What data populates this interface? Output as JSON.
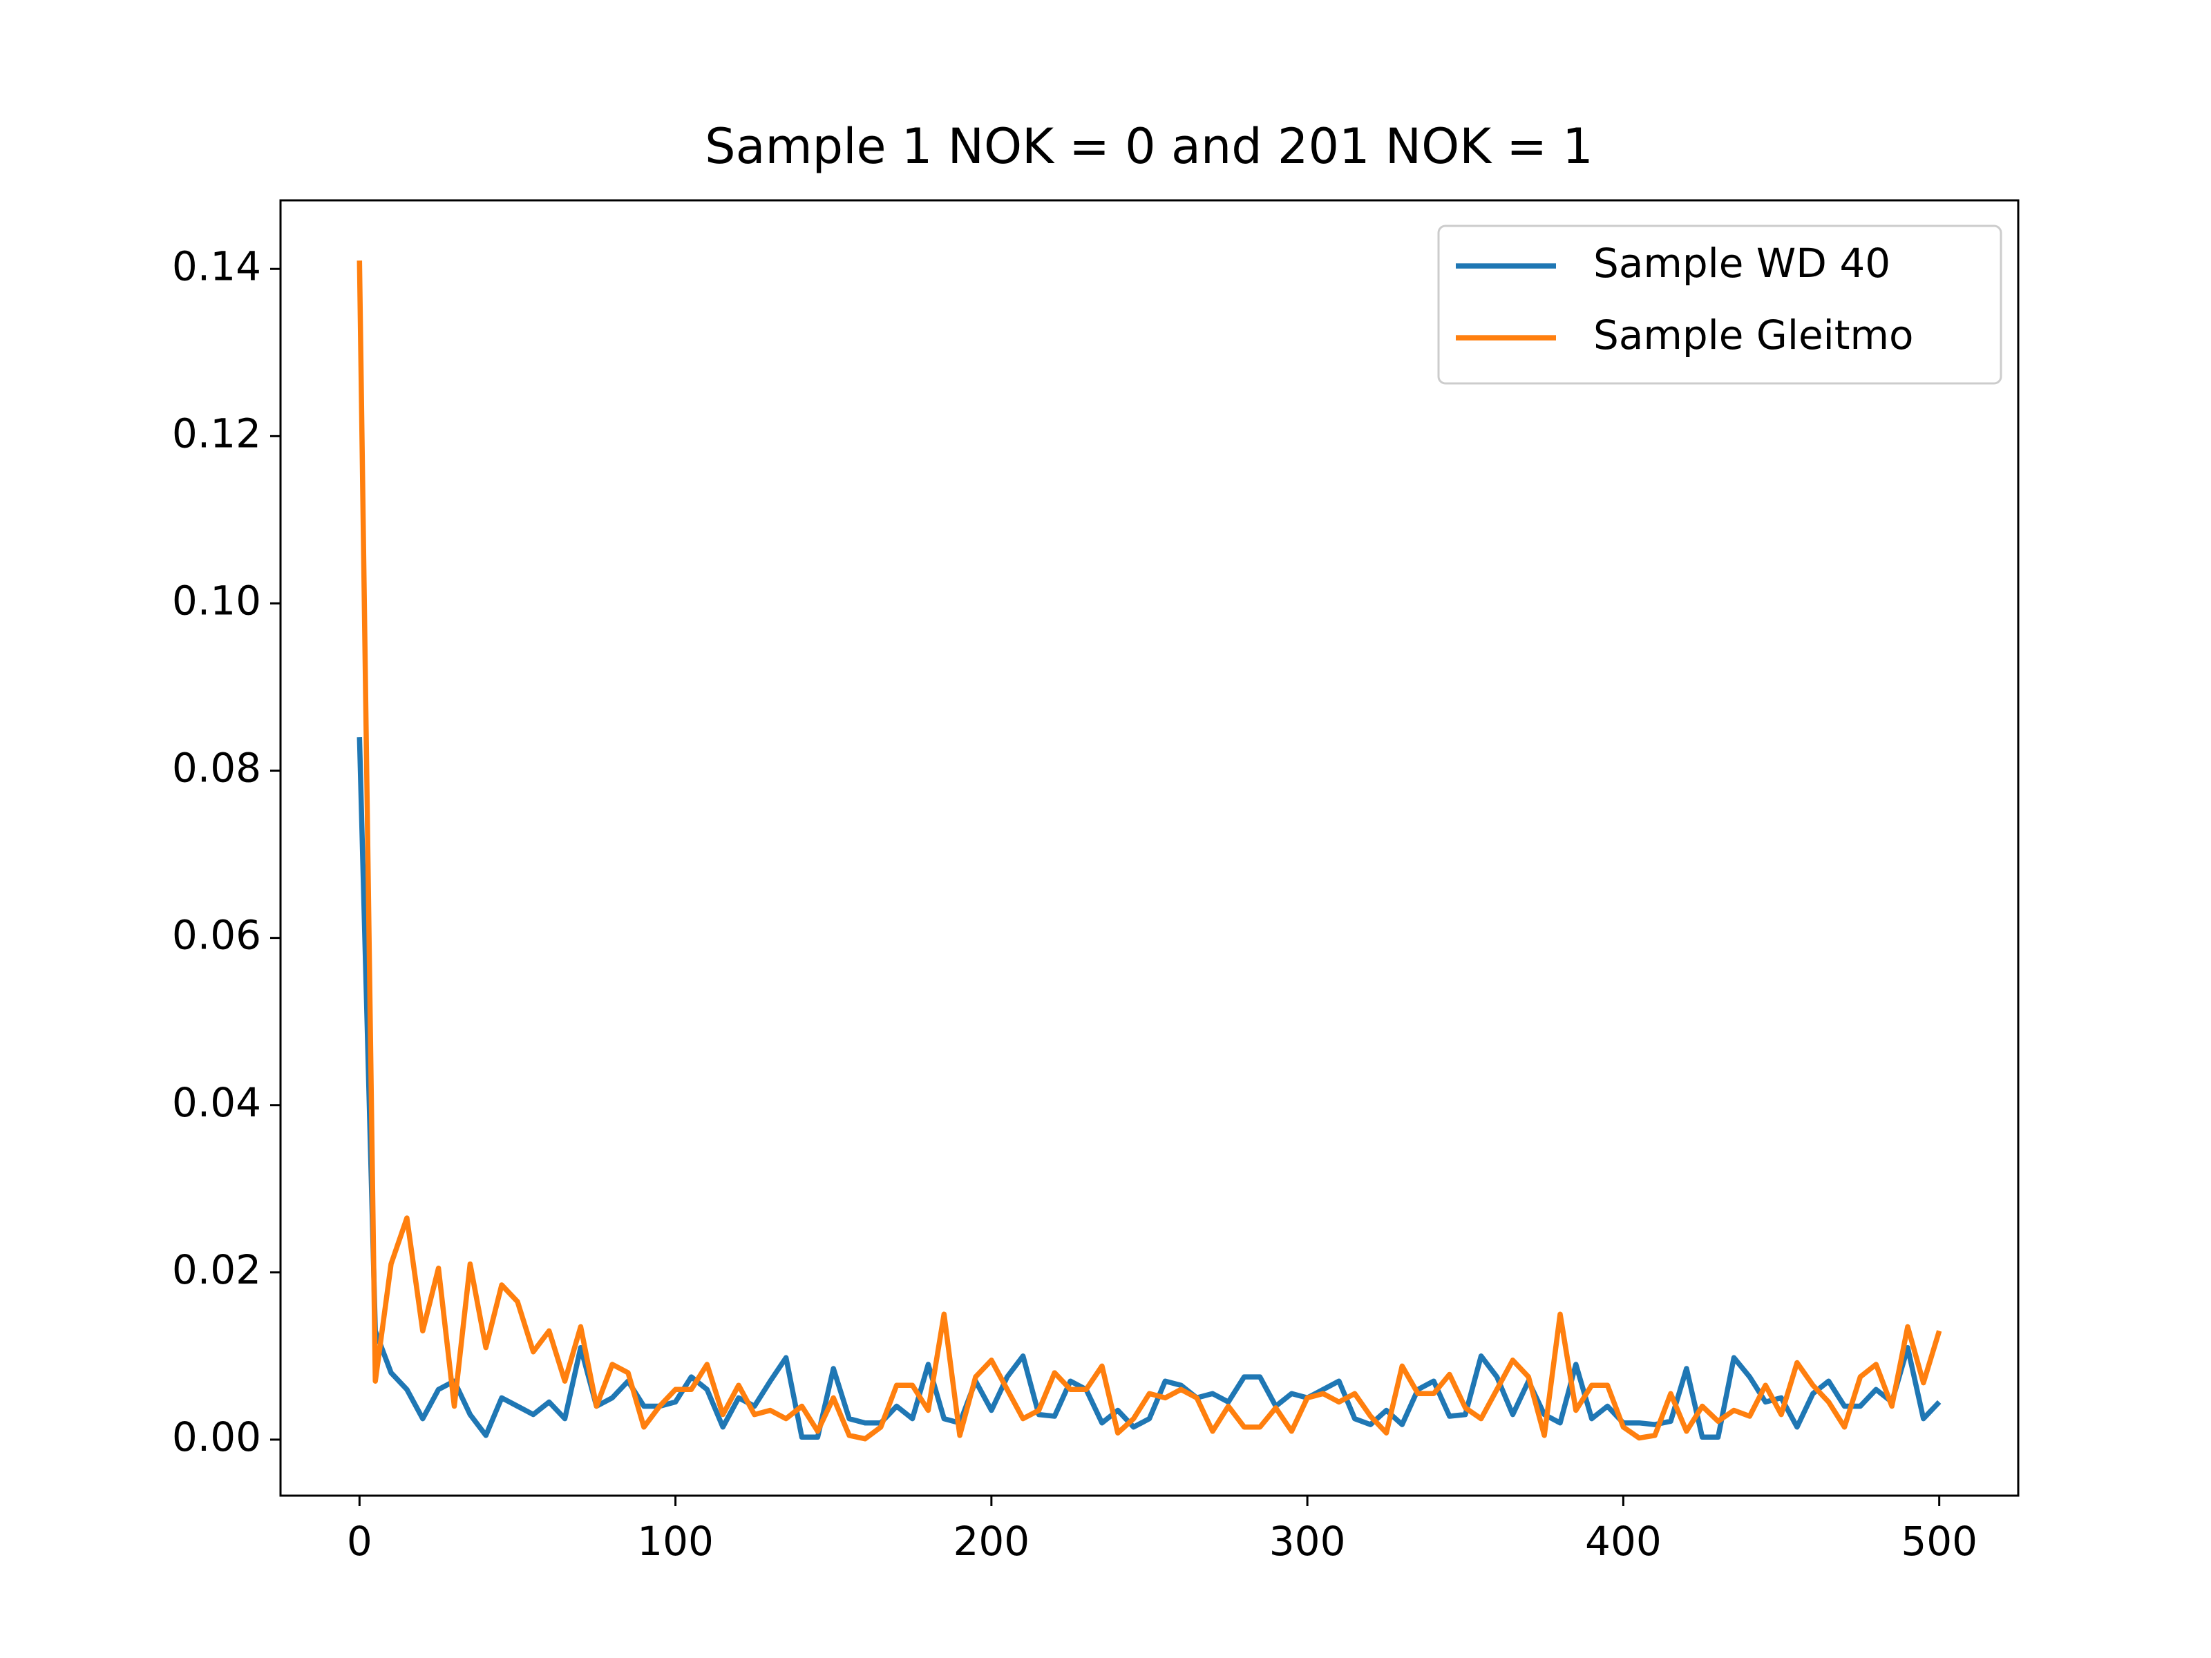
{
  "chart_data": {
    "type": "line",
    "title": "Sample 1 NOK = 0 and 201 NOK = 1",
    "x": [
      0,
      5,
      10,
      15,
      20,
      25,
      30,
      35,
      40,
      45,
      50,
      55,
      60,
      65,
      70,
      75,
      80,
      85,
      90,
      95,
      100,
      105,
      110,
      115,
      120,
      125,
      130,
      135,
      140,
      145,
      150,
      155,
      160,
      165,
      170,
      175,
      180,
      185,
      190,
      195,
      200,
      205,
      210,
      215,
      220,
      225,
      230,
      235,
      240,
      245,
      250,
      255,
      260,
      265,
      270,
      275,
      280,
      285,
      290,
      295,
      300,
      305,
      310,
      315,
      320,
      325,
      330,
      335,
      340,
      345,
      350,
      355,
      360,
      365,
      370,
      375,
      380,
      385,
      390,
      395,
      400,
      405,
      410,
      415,
      420,
      425,
      430,
      435,
      440,
      445,
      450,
      455,
      460,
      465,
      470,
      475,
      480,
      485,
      490,
      495,
      500
    ],
    "series": [
      {
        "name": "Sample WD 40",
        "color": "#1f77b4",
        "values": [
          0.084,
          0.013,
          0.008,
          0.006,
          0.0025,
          0.006,
          0.007,
          0.003,
          0.0005,
          0.005,
          0.004,
          0.003,
          0.0045,
          0.0025,
          0.011,
          0.004,
          0.005,
          0.007,
          0.004,
          0.004,
          0.0045,
          0.0075,
          0.006,
          0.0015,
          0.005,
          0.004,
          0.007,
          0.0098,
          0.0003,
          0.0003,
          0.0085,
          0.0025,
          0.002,
          0.002,
          0.004,
          0.0025,
          0.009,
          0.0025,
          0.002,
          0.007,
          0.0035,
          0.0075,
          0.01,
          0.003,
          0.0028,
          0.007,
          0.006,
          0.002,
          0.0035,
          0.0015,
          0.0025,
          0.007,
          0.0065,
          0.005,
          0.0055,
          0.0045,
          0.0075,
          0.0075,
          0.004,
          0.0055,
          0.005,
          0.006,
          0.007,
          0.0025,
          0.0018,
          0.0035,
          0.0018,
          0.006,
          0.007,
          0.0028,
          0.003,
          0.01,
          0.0075,
          0.003,
          0.007,
          0.003,
          0.002,
          0.009,
          0.0025,
          0.004,
          0.002,
          0.002,
          0.0018,
          0.0022,
          0.0085,
          0.0003,
          0.0003,
          0.0098,
          0.0075,
          0.0045,
          0.005,
          0.0015,
          0.0055,
          0.007,
          0.004,
          0.004,
          0.006,
          0.0045,
          0.011,
          0.0025,
          0.0045
        ]
      },
      {
        "name": "Sample Gleitmo",
        "color": "#ff7f0e",
        "values": [
          0.141,
          0.007,
          0.021,
          0.0265,
          0.013,
          0.0205,
          0.004,
          0.021,
          0.011,
          0.0185,
          0.0165,
          0.0105,
          0.013,
          0.007,
          0.0135,
          0.004,
          0.009,
          0.008,
          0.0015,
          0.004,
          0.006,
          0.006,
          0.009,
          0.003,
          0.0065,
          0.003,
          0.0035,
          0.0025,
          0.004,
          0.001,
          0.005,
          0.0005,
          0.0001,
          0.0015,
          0.0065,
          0.0065,
          0.0035,
          0.015,
          0.0005,
          0.0075,
          0.0095,
          0.006,
          0.0025,
          0.0035,
          0.008,
          0.006,
          0.006,
          0.0088,
          0.0008,
          0.0025,
          0.0055,
          0.005,
          0.006,
          0.005,
          0.001,
          0.004,
          0.0015,
          0.0015,
          0.0038,
          0.001,
          0.005,
          0.0055,
          0.0045,
          0.0055,
          0.0028,
          0.0008,
          0.0088,
          0.0055,
          0.0055,
          0.0078,
          0.0038,
          0.0025,
          0.006,
          0.0095,
          0.0075,
          0.0005,
          0.015,
          0.0035,
          0.0065,
          0.0065,
          0.0015,
          0.0002,
          0.0005,
          0.0055,
          0.001,
          0.004,
          0.0022,
          0.0035,
          0.0028,
          0.0065,
          0.003,
          0.0092,
          0.0065,
          0.0045,
          0.0015,
          0.0075,
          0.009,
          0.004,
          0.0135,
          0.0068,
          0.013
        ]
      }
    ],
    "xlim": [
      -25,
      525
    ],
    "xticks": [
      0,
      100,
      200,
      300,
      400,
      500
    ],
    "ylim": [
      -0.0067,
      0.1482
    ],
    "yticks": [
      {
        "value": 0,
        "label": "0.00"
      },
      {
        "value": 0.02,
        "label": "0.02"
      },
      {
        "value": 0.04,
        "label": "0.04"
      },
      {
        "value": 0.06,
        "label": "0.06"
      },
      {
        "value": 0.08,
        "label": "0.08"
      },
      {
        "value": 0.1,
        "label": "0.10"
      },
      {
        "value": 0.12,
        "label": "0.12"
      },
      {
        "value": 0.14,
        "label": "0.14"
      }
    ],
    "grid": false,
    "legend": "upper right"
  }
}
